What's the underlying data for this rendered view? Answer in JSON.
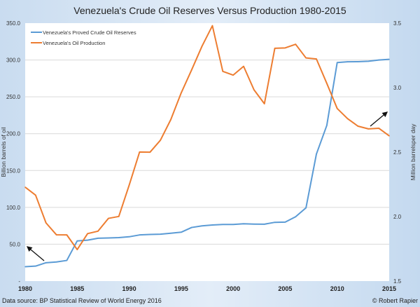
{
  "chart_data": {
    "type": "line",
    "title": "Venezuela's Crude Oil Reserves Versus Production 1980-2015",
    "ylabel": "Billion barrels of oil",
    "y2label": "Million barrelsper day",
    "ylim": [
      0,
      350
    ],
    "y2lim": [
      1.5,
      3.5
    ],
    "xlim": [
      1980,
      2015
    ],
    "xticks": [
      "1980",
      "1985",
      "1990",
      "1995",
      "2000",
      "2005",
      "2010",
      "2015"
    ],
    "yticks": [
      "-",
      "50.0",
      "100.0",
      "150.0",
      "200.0",
      "250.0",
      "300.0",
      "350.0"
    ],
    "y2ticks": [
      "1.5",
      "2.0",
      "2.5",
      "3.0",
      "3.5"
    ],
    "grid": true,
    "legend_position": "top-left",
    "x": [
      1980,
      1981,
      1982,
      1983,
      1984,
      1985,
      1986,
      1987,
      1988,
      1989,
      1990,
      1991,
      1992,
      1993,
      1994,
      1995,
      1996,
      1997,
      1998,
      1999,
      2000,
      2001,
      2002,
      2003,
      2004,
      2005,
      2006,
      2007,
      2008,
      2009,
      2010,
      2011,
      2012,
      2013,
      2014,
      2015
    ],
    "series": [
      {
        "name": "Venezuela's Proved Crude Oil Reserves",
        "axis": "left",
        "color": "#5b9bd5",
        "values": [
          19.5,
          20.3,
          24.9,
          25.9,
          28.0,
          54.5,
          55.5,
          58.1,
          58.5,
          59.0,
          60.1,
          62.6,
          63.3,
          63.6,
          64.9,
          66.3,
          72.7,
          74.9,
          76.1,
          76.8,
          76.8,
          77.7,
          77.3,
          77.2,
          79.7,
          80.0,
          87.3,
          99.4,
          172.3,
          211.2,
          296.5,
          297.6,
          297.7,
          298.3,
          300.0,
          300.9
        ]
      },
      {
        "name": "Venezuela's Oil Production",
        "axis": "right",
        "color": "#ed7d31",
        "values": [
          2.228,
          2.166,
          1.951,
          1.859,
          1.858,
          1.744,
          1.868,
          1.887,
          1.986,
          2.001,
          2.244,
          2.501,
          2.499,
          2.592,
          2.752,
          2.959,
          3.137,
          3.321,
          3.48,
          3.126,
          3.097,
          3.165,
          2.983,
          2.875,
          3.305,
          3.308,
          3.336,
          3.23,
          3.222,
          3.033,
          2.838,
          2.759,
          2.701,
          2.68,
          2.685,
          2.626
        ]
      }
    ],
    "annotations": [
      "arrow pointing to left axis",
      "arrow pointing to right axis"
    ]
  },
  "footer": {
    "source": "Data source: BP Statistical Review of World Energy 2016",
    "credit": "© Robert Rapier"
  }
}
